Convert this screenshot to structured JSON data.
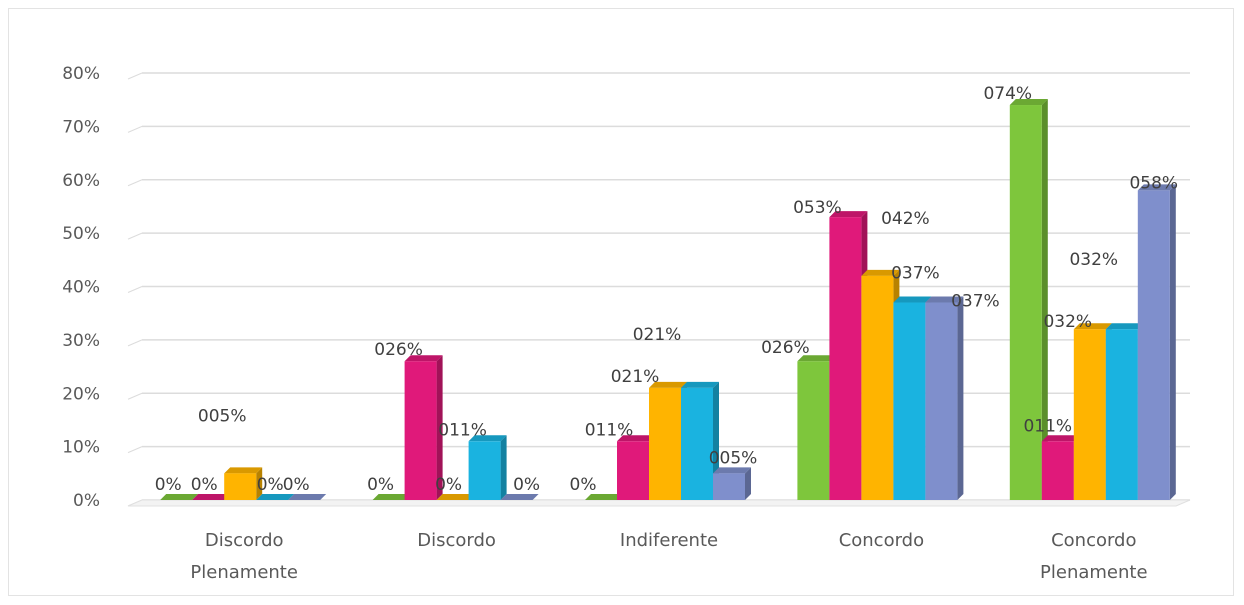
{
  "chart_data": {
    "type": "bar",
    "ylim": [
      0,
      80
    ],
    "ytick_labels": [
      "0%",
      "10%",
      "20%",
      "30%",
      "40%",
      "50%",
      "60%",
      "70%",
      "80%"
    ],
    "grid": true,
    "categories": [
      [
        "Discordo",
        "Plenamente"
      ],
      [
        "Discordo"
      ],
      [
        "Indiferente"
      ],
      [
        "Concordo"
      ],
      [
        "Concordo",
        "Plenamente"
      ]
    ],
    "series": [
      {
        "color": "#7ec63c",
        "values": [
          0,
          0,
          0,
          26,
          74
        ],
        "labels": [
          "0%",
          "0%",
          "0%",
          "026%",
          "074%"
        ]
      },
      {
        "color": "#e0197a",
        "values": [
          0,
          26,
          11,
          53,
          11
        ],
        "labels": [
          "0%",
          "026%",
          "011%",
          "053%",
          "011%"
        ]
      },
      {
        "color": "#ffb400",
        "values": [
          5,
          0,
          21,
          42,
          32
        ],
        "labels": [
          "005%",
          "0%",
          "021%",
          "042%",
          "032%"
        ]
      },
      {
        "color": "#1ab3e0",
        "values": [
          0,
          11,
          21,
          37,
          32
        ],
        "labels": [
          "0%",
          "011%",
          "021%",
          "037%",
          "032%"
        ]
      },
      {
        "color": "#7f8fcc",
        "values": [
          0,
          0,
          5,
          37,
          58
        ],
        "labels": [
          "0%",
          "0%",
          "005%",
          "037%",
          "058%"
        ]
      }
    ]
  }
}
